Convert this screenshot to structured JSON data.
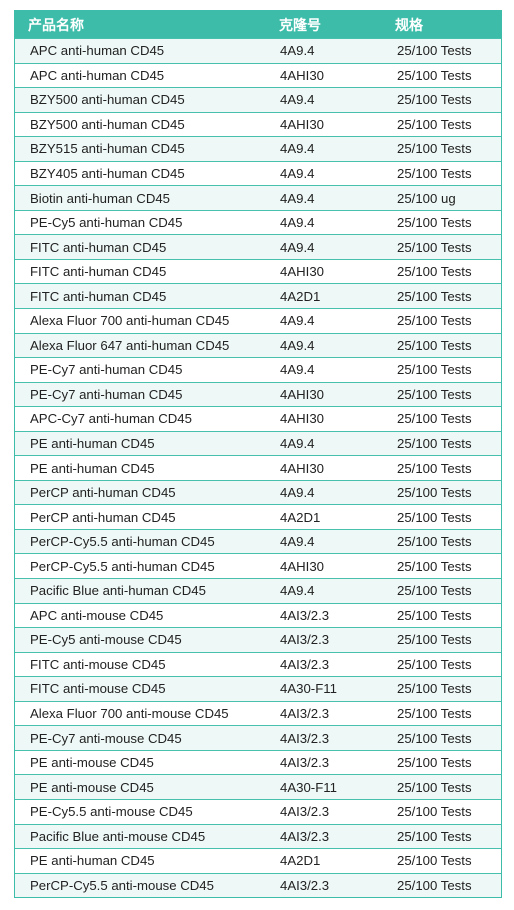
{
  "columns": [
    "产品名称",
    "克隆号",
    "规格"
  ],
  "rows": [
    [
      "APC anti-human CD45",
      "4A9.4",
      "25/100 Tests"
    ],
    [
      "APC anti-human CD45",
      "4AHI30",
      "25/100 Tests"
    ],
    [
      "BZY500 anti-human CD45",
      "4A9.4",
      "25/100 Tests"
    ],
    [
      "BZY500 anti-human CD45",
      "4AHI30",
      "25/100 Tests"
    ],
    [
      "BZY515 anti-human CD45",
      "4A9.4",
      "25/100 Tests"
    ],
    [
      "BZY405  anti-human CD45",
      "4A9.4",
      "25/100 Tests"
    ],
    [
      "Biotin anti-human CD45",
      "4A9.4",
      "25/100 ug"
    ],
    [
      "PE-Cy5 anti-human CD45",
      "4A9.4",
      "25/100 Tests"
    ],
    [
      "FITC anti-human CD45",
      "4A9.4",
      "25/100 Tests"
    ],
    [
      "FITC anti-human CD45",
      "4AHI30",
      "25/100 Tests"
    ],
    [
      "FITC anti-human CD45",
      "4A2D1",
      "25/100 Tests"
    ],
    [
      "Alexa Fluor 700 anti-human CD45",
      "4A9.4",
      "25/100 Tests"
    ],
    [
      "Alexa Fluor 647 anti-human CD45",
      "4A9.4",
      "25/100 Tests"
    ],
    [
      "PE-Cy7 anti-human CD45",
      "4A9.4",
      "25/100 Tests"
    ],
    [
      "PE-Cy7 anti-human CD45",
      "4AHI30",
      "25/100 Tests"
    ],
    [
      "APC-Cy7 anti-human CD45",
      "4AHI30",
      "25/100 Tests"
    ],
    [
      "PE anti-human CD45",
      "4A9.4",
      "25/100 Tests"
    ],
    [
      "PE anti-human CD45",
      "4AHI30",
      "25/100 Tests"
    ],
    [
      "PerCP anti-human CD45",
      "4A9.4",
      "25/100 Tests"
    ],
    [
      "PerCP anti-human CD45",
      "4A2D1",
      "25/100 Tests"
    ],
    [
      "PerCP-Cy5.5 anti-human CD45",
      "4A9.4",
      "25/100 Tests"
    ],
    [
      "PerCP-Cy5.5 anti-human CD45",
      "4AHI30",
      "25/100 Tests"
    ],
    [
      "Pacific Blue anti-human CD45",
      "4A9.4",
      "25/100 Tests"
    ],
    [
      "APC anti-mouse CD45",
      "4AI3/2.3",
      "25/100 Tests"
    ],
    [
      "PE-Cy5 anti-mouse CD45",
      "4AI3/2.3",
      "25/100 Tests"
    ],
    [
      "FITC anti-mouse CD45",
      "4AI3/2.3",
      "25/100 Tests"
    ],
    [
      "FITC anti-mouse CD45",
      "4A30-F11",
      "25/100 Tests"
    ],
    [
      "Alexa Fluor 700 anti-mouse CD45",
      "4AI3/2.3",
      "25/100 Tests"
    ],
    [
      "PE-Cy7 anti-mouse CD45",
      "4AI3/2.3",
      "25/100 Tests"
    ],
    [
      "PE anti-mouse CD45",
      "4AI3/2.3",
      "25/100 Tests"
    ],
    [
      "PE anti-mouse CD45",
      "4A30-F11",
      "25/100 Tests"
    ],
    [
      "PE-Cy5.5 anti-mouse CD45",
      "4AI3/2.3",
      "25/100 Tests"
    ],
    [
      "Pacific Blue anti-mouse CD45",
      "4AI3/2.3",
      "25/100 Tests"
    ],
    [
      "PE anti-human CD45",
      "4A2D1",
      "25/100 Tests"
    ],
    [
      "PerCP-Cy5.5 anti-mouse CD45",
      "4AI3/2.3",
      "25/100 Tests"
    ]
  ],
  "colors": {
    "header_bg": "#3dbda9",
    "row_alt_bg": "#eef8f6",
    "border": "#47c1ad"
  }
}
